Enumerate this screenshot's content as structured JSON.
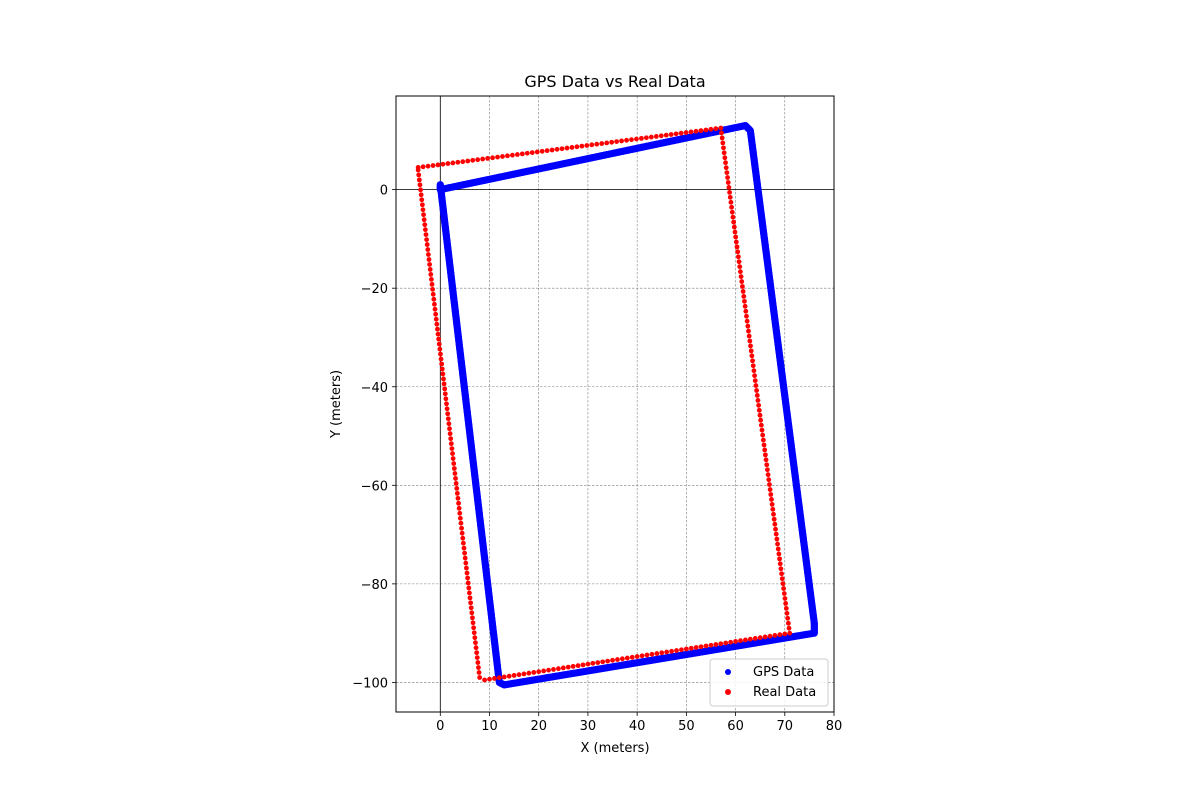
{
  "chart_data": {
    "type": "scatter",
    "title": "GPS Data vs Real Data",
    "xlabel": "X (meters)",
    "ylabel": "Y (meters)",
    "xlim": [
      -9,
      80
    ],
    "ylim": [
      -106,
      19
    ],
    "xticks": [
      0,
      10,
      20,
      30,
      40,
      50,
      60,
      70,
      80
    ],
    "yticks": [
      0,
      -20,
      -40,
      -60,
      -80,
      -100
    ],
    "grid": true,
    "reference_lines": {
      "x": 0,
      "y": 0
    },
    "legend_position": "lower-right",
    "series": [
      {
        "name": "GPS Data",
        "color": "#0000ff",
        "path_vertices": [
          [
            0,
            1
          ],
          [
            0,
            0
          ],
          [
            62,
            13
          ],
          [
            63,
            12
          ],
          [
            76,
            -88
          ],
          [
            76,
            -90
          ],
          [
            13,
            -100.5
          ],
          [
            12,
            -100
          ],
          [
            0,
            1
          ]
        ]
      },
      {
        "name": "Real Data",
        "color": "#ff0000",
        "path_vertices": [
          [
            -4.5,
            4
          ],
          [
            -4.5,
            4.5
          ],
          [
            57,
            12.5
          ],
          [
            71,
            -90
          ],
          [
            9,
            -99.5
          ],
          [
            8,
            -99
          ],
          [
            -4.5,
            4
          ]
        ]
      }
    ]
  }
}
